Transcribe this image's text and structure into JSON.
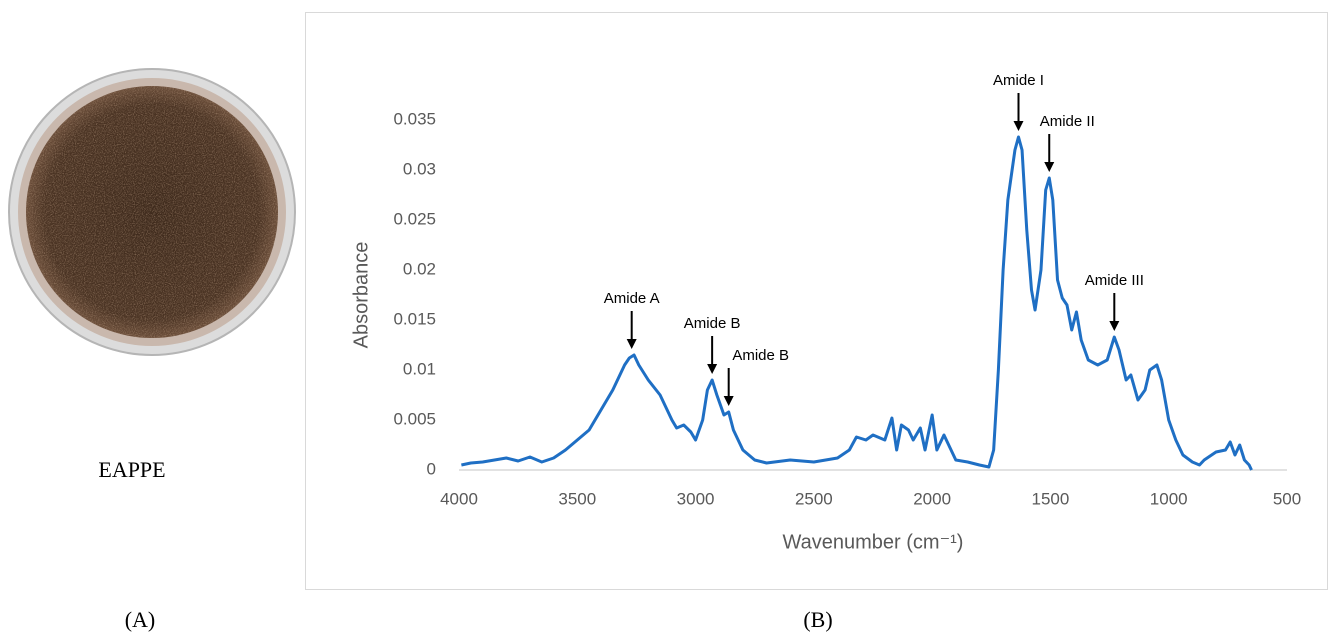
{
  "photo_label": "EAPPE",
  "panel_a": "(A)",
  "panel_b": "(B)",
  "chart_data": {
    "type": "line",
    "xlabel": "Wavenumber (cm⁻¹)",
    "ylabel": "Absorbance",
    "color": "#1f6fc4",
    "xlim": [
      4000,
      500
    ],
    "ylim": [
      0,
      0.035
    ],
    "xticks": [
      4000,
      3500,
      3000,
      2500,
      2000,
      1500,
      1000,
      500
    ],
    "yticks": [
      0,
      0.005,
      0.01,
      0.015,
      0.02,
      0.025,
      0.03,
      0.035
    ],
    "x": [
      3990,
      3950,
      3900,
      3850,
      3800,
      3750,
      3700,
      3650,
      3600,
      3550,
      3500,
      3450,
      3400,
      3350,
      3300,
      3280,
      3260,
      3240,
      3200,
      3150,
      3100,
      3080,
      3050,
      3020,
      3000,
      2970,
      2950,
      2930,
      2910,
      2880,
      2860,
      2840,
      2800,
      2750,
      2700,
      2600,
      2500,
      2400,
      2350,
      2320,
      2280,
      2250,
      2200,
      2170,
      2150,
      2130,
      2100,
      2080,
      2050,
      2030,
      2000,
      1980,
      1950,
      1900,
      1850,
      1800,
      1760,
      1740,
      1720,
      1700,
      1680,
      1650,
      1635,
      1620,
      1600,
      1580,
      1565,
      1540,
      1520,
      1505,
      1490,
      1470,
      1450,
      1430,
      1410,
      1390,
      1370,
      1340,
      1300,
      1260,
      1230,
      1210,
      1180,
      1160,
      1130,
      1100,
      1080,
      1050,
      1030,
      1000,
      970,
      940,
      900,
      870,
      850,
      800,
      760,
      740,
      720,
      700,
      680,
      660,
      650
    ],
    "values": [
      0.0005,
      0.0007,
      0.0008,
      0.001,
      0.0012,
      0.0009,
      0.0013,
      0.0008,
      0.0012,
      0.002,
      0.003,
      0.004,
      0.006,
      0.008,
      0.0105,
      0.0112,
      0.0115,
      0.0105,
      0.009,
      0.0075,
      0.005,
      0.0042,
      0.0045,
      0.0038,
      0.003,
      0.005,
      0.008,
      0.009,
      0.0075,
      0.0055,
      0.0058,
      0.004,
      0.002,
      0.001,
      0.0007,
      0.001,
      0.0008,
      0.0012,
      0.002,
      0.0033,
      0.003,
      0.0035,
      0.003,
      0.0052,
      0.002,
      0.0045,
      0.004,
      0.003,
      0.0042,
      0.002,
      0.0055,
      0.002,
      0.0035,
      0.001,
      0.0008,
      0.0005,
      0.0003,
      0.002,
      0.01,
      0.02,
      0.027,
      0.032,
      0.0333,
      0.032,
      0.024,
      0.018,
      0.016,
      0.02,
      0.028,
      0.0292,
      0.027,
      0.019,
      0.0172,
      0.0165,
      0.014,
      0.0158,
      0.013,
      0.011,
      0.0105,
      0.011,
      0.0133,
      0.012,
      0.009,
      0.0095,
      0.007,
      0.008,
      0.01,
      0.0105,
      0.009,
      0.005,
      0.003,
      0.0015,
      0.0008,
      0.0005,
      0.001,
      0.0018,
      0.002,
      0.0028,
      0.0015,
      0.0025,
      0.001,
      0.0005,
      0
    ],
    "annotations": [
      {
        "text": "Amide A",
        "x": 3270,
        "y": 0.0115
      },
      {
        "text": "Amide B",
        "x": 2930,
        "y": 0.009
      },
      {
        "text": "Amide B",
        "x": 2860,
        "y": 0.0058
      },
      {
        "text": "Amide I",
        "x": 1635,
        "y": 0.0333
      },
      {
        "text": "Amide II",
        "x": 1505,
        "y": 0.0292
      },
      {
        "text": "Amide III",
        "x": 1230,
        "y": 0.0133
      }
    ]
  }
}
